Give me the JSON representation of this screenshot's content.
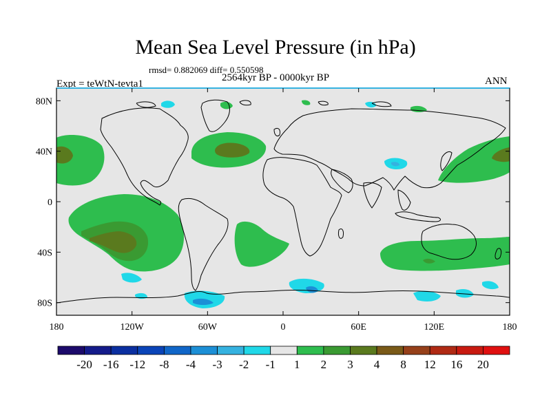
{
  "figure": {
    "title": "Mean Sea Level Pressure (in hPa)",
    "stats": "rmsd= 0.882069 diff= 0.550598",
    "period": "2564kyr BP - 0000kyr BP",
    "experiment": "Expt = teWtN-tevta1",
    "season": "ANN"
  },
  "axes": {
    "x_ticks": [
      "180",
      "120W",
      "60W",
      "0",
      "60E",
      "120E",
      "180"
    ],
    "x_values": [
      -180,
      -120,
      -60,
      0,
      60,
      120,
      180
    ],
    "y_ticks": [
      "80N",
      "40N",
      "0",
      "40S",
      "80S"
    ],
    "y_values": [
      80,
      40,
      0,
      -40,
      -80
    ],
    "lon_range": [
      -180,
      180
    ],
    "lat_range": [
      -90,
      90
    ]
  },
  "colorbar": {
    "labels": [
      "-20",
      "-16",
      "-12",
      "-8",
      "-4",
      "-3",
      "-2",
      "-1",
      "1",
      "2",
      "3",
      "4",
      "8",
      "12",
      "16",
      "20"
    ],
    "colors": [
      "#1c0a6b",
      "#141b8a",
      "#0b2fa0",
      "#0a44b8",
      "#1066c8",
      "#1c8fd6",
      "#35b2e0",
      "#20d8e8",
      "#e6e6e6",
      "#2ebd4e",
      "#3a9a32",
      "#5a7a1e",
      "#7a5a18",
      "#96401a",
      "#b02a14",
      "#c81a10",
      "#e01010"
    ]
  },
  "field": {
    "background": "#e6e6e6",
    "bands": [
      {
        "name": "1 to 2",
        "color": "#2ebd4e"
      },
      {
        "name": "2 to 3",
        "color": "#3a9a32"
      },
      {
        "name": "3 to 4",
        "color": "#5a7a1e"
      },
      {
        "name": "-1 to -2",
        "color": "#20d8e8"
      },
      {
        "name": "-2 to -3",
        "color": "#35b2e0"
      },
      {
        "name": "-3 to -4",
        "color": "#1c8fd6"
      }
    ]
  }
}
